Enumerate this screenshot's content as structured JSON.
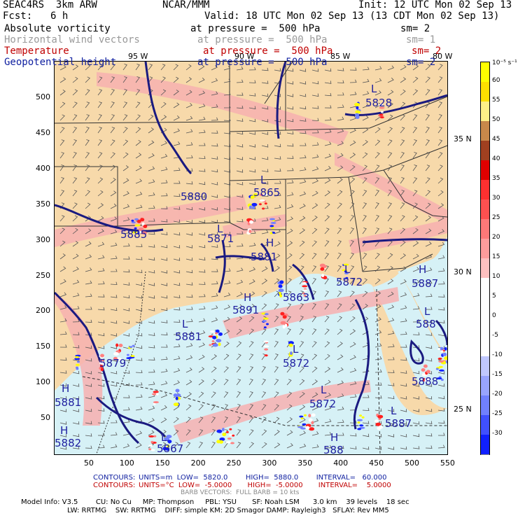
{
  "header": {
    "model": "SEAC4RS  3km ARW",
    "org": "NCAR/MMM",
    "init": "Init: 12 UTC Mon 02 Sep 13",
    "fcst_label": "Fcst:",
    "fcst_value": "6 h",
    "valid": "Valid: 18 UTC Mon 02 Sep 13 (13 CDT Mon 02 Sep 13)"
  },
  "fields": [
    {
      "name": "Absolute vorticity",
      "level": "at pressure =  500 hPa",
      "sm": "sm= 2",
      "color": "#000000"
    },
    {
      "name": "Horizontal wind vectors",
      "level": "at pressure =  500 hPa",
      "sm": "sm= 1",
      "color": "#9a9a9a"
    },
    {
      "name": "Temperature",
      "level": "at pressure =  500 hPa",
      "sm": "sm= 2",
      "color": "#c00000"
    },
    {
      "name": "Geopotential height",
      "level": "at pressure =  500 hPa",
      "sm": "sm= 2",
      "color": "#1020a0"
    }
  ],
  "axes": {
    "x_ticks": [
      "50",
      "100",
      "150",
      "200",
      "250",
      "300",
      "350",
      "400",
      "450",
      "500",
      "550"
    ],
    "y_ticks": [
      "500",
      "450",
      "400",
      "350",
      "300",
      "250",
      "200",
      "150",
      "100",
      "50"
    ],
    "lon_labels": [
      "95 W",
      "90 W",
      "85 W",
      "80 W"
    ],
    "lat_labels": [
      "35 N",
      "30 N",
      "25 N"
    ]
  },
  "map": {
    "height_labels": [
      {
        "text": "L",
        "kind": "low"
      },
      {
        "text": "5828",
        "kind": "value"
      },
      {
        "text": "5880",
        "kind": "value"
      },
      {
        "text": "L",
        "kind": "low"
      },
      {
        "text": "5865",
        "kind": "value"
      },
      {
        "text": "5885",
        "kind": "value"
      },
      {
        "text": "L",
        "kind": "low"
      },
      {
        "text": "5871",
        "kind": "value"
      },
      {
        "text": "H",
        "kind": "high"
      },
      {
        "text": "5881",
        "kind": "value"
      },
      {
        "text": "L",
        "kind": "low"
      },
      {
        "text": "5872",
        "kind": "value"
      },
      {
        "text": "H",
        "kind": "high"
      },
      {
        "text": "5887",
        "kind": "value"
      },
      {
        "text": "5863",
        "kind": "value"
      },
      {
        "text": "H",
        "kind": "high"
      },
      {
        "text": "5891",
        "kind": "value"
      },
      {
        "text": "L",
        "kind": "low"
      },
      {
        "text": "5881",
        "kind": "value"
      },
      {
        "text": "L",
        "kind": "low"
      },
      {
        "text": "588",
        "kind": "value"
      },
      {
        "text": "5879",
        "kind": "value"
      },
      {
        "text": "L",
        "kind": "low"
      },
      {
        "text": "5872",
        "kind": "value"
      },
      {
        "text": "5888",
        "kind": "value"
      },
      {
        "text": "H",
        "kind": "high"
      },
      {
        "text": "5881",
        "kind": "value"
      },
      {
        "text": "L",
        "kind": "low"
      },
      {
        "text": "5872",
        "kind": "value"
      },
      {
        "text": "L",
        "kind": "low"
      },
      {
        "text": "5887",
        "kind": "value"
      },
      {
        "text": "H",
        "kind": "high"
      },
      {
        "text": "5882",
        "kind": "value"
      },
      {
        "text": "L",
        "kind": "low"
      },
      {
        "text": "5867",
        "kind": "value"
      },
      {
        "text": "H",
        "kind": "high"
      },
      {
        "text": "588",
        "kind": "value"
      }
    ],
    "colors": {
      "land": "#f7d9aa",
      "water": "#d6f1f6",
      "warm_band": "#f7b0b0",
      "height_contour": "#1a1a80",
      "boundary": "#333333"
    }
  },
  "colorbar": {
    "unit": "10⁻⁵ s⁻¹",
    "labels": [
      "60",
      "55",
      "50",
      "45",
      "40",
      "35",
      "30",
      "25",
      "20",
      "15",
      "10",
      "5",
      "0",
      "-5",
      "-10",
      "-15",
      "-20",
      "-25",
      "-30"
    ],
    "colors": [
      "#ffff00",
      "#ffe000",
      "#fff088",
      "#c8884a",
      "#a04020",
      "#e00000",
      "#ff3030",
      "#ff5050",
      "#ff7878",
      "#ff9c9c",
      "#ffc0c0",
      "#ffffff",
      "#ffffff",
      "#ffffff",
      "#ffffff",
      "#c0c8ff",
      "#98a4ff",
      "#7080ff",
      "#4050ff",
      "#1020ff"
    ]
  },
  "footer": {
    "contours1_label": "CONTOURS:",
    "contours1": "UNITS=m  LOW=  5820.0        HIGH=  5880.0        INTERVAL=   60.000",
    "contours2_label": "CONTOURS:",
    "contours2": "UNITS=°C  LOW=  -5.0000       HIGH=  -5.0000       INTERVAL=    5.0000",
    "barbs": "BARB VECTORS:  FULL BARB = 10 kts",
    "model_info1": "Model Info: V3.5        CU: No Cu     MP: Thompson     PBL: YSU       SF: Noah LSM      3.0 km    39 levels    18 sec",
    "model_info2": "LW: RRTMG    SW: RRTMG    DIFF: simple KM: 2D Smagor DAMP: Rayleigh3   SFLAY: Rev MM5"
  }
}
